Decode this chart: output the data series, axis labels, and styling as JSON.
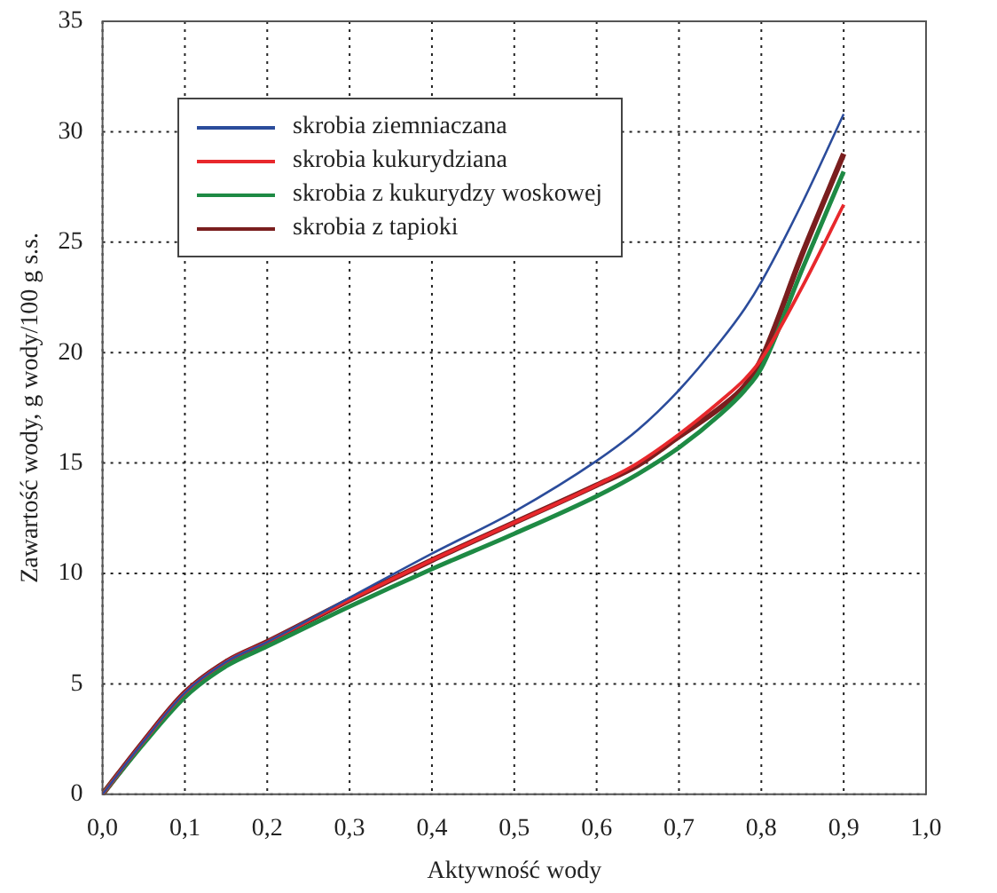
{
  "chart_data": {
    "type": "line",
    "xlabel": "Aktywność wody",
    "ylabel": "Zawartość wody, g wody/100 g s.s.",
    "x": [
      0,
      0.05,
      0.1,
      0.15,
      0.2,
      0.3,
      0.4,
      0.5,
      0.6,
      0.65,
      0.7,
      0.75,
      0.78,
      0.8,
      0.85,
      0.9
    ],
    "series": [
      {
        "name": "skrobia ziemniaczana",
        "color": "#2b4c9b",
        "values": [
          0,
          2.4,
          4.6,
          6.0,
          6.9,
          8.9,
          10.9,
          12.8,
          15.1,
          16.5,
          18.3,
          20.5,
          22.0,
          23.2,
          26.8,
          30.8
        ]
      },
      {
        "name": "skrobia kukurydziana",
        "color": "#e8282c",
        "values": [
          0,
          2.4,
          4.6,
          6.0,
          6.9,
          8.8,
          10.6,
          12.3,
          14.0,
          15.0,
          16.3,
          17.8,
          18.8,
          19.7,
          23.0,
          26.7
        ]
      },
      {
        "name": "skrobia z kukurydzy woskowej",
        "color": "#1e8a44",
        "values": [
          0,
          2.3,
          4.4,
          5.8,
          6.7,
          8.5,
          10.2,
          11.8,
          13.5,
          14.5,
          15.7,
          17.2,
          18.3,
          19.3,
          23.8,
          28.2
        ]
      },
      {
        "name": "skrobia z tapioki",
        "color": "#7a1e1e",
        "values": [
          0,
          2.4,
          4.6,
          6.0,
          6.9,
          8.8,
          10.6,
          12.3,
          14.0,
          14.9,
          16.2,
          17.5,
          18.5,
          19.7,
          24.5,
          29.0
        ]
      }
    ],
    "xlim": [
      0,
      1
    ],
    "xticks": [
      {
        "value": 0,
        "label": "0,0"
      },
      {
        "value": 0.1,
        "label": "0,1"
      },
      {
        "value": 0.2,
        "label": "0,2"
      },
      {
        "value": 0.3,
        "label": "0,3"
      },
      {
        "value": 0.4,
        "label": "0,4"
      },
      {
        "value": 0.5,
        "label": "0,5"
      },
      {
        "value": 0.6,
        "label": "0,6"
      },
      {
        "value": 0.7,
        "label": "0,7"
      },
      {
        "value": 0.8,
        "label": "0,8"
      },
      {
        "value": 0.9,
        "label": "0,9"
      },
      {
        "value": 1,
        "label": "1,0"
      }
    ],
    "ylim": [
      0,
      35
    ],
    "yticks": [
      0,
      5,
      10,
      15,
      20,
      25,
      30,
      35
    ],
    "grid": true,
    "legend": "top left",
    "marker": "none",
    "line_style": "solid"
  }
}
